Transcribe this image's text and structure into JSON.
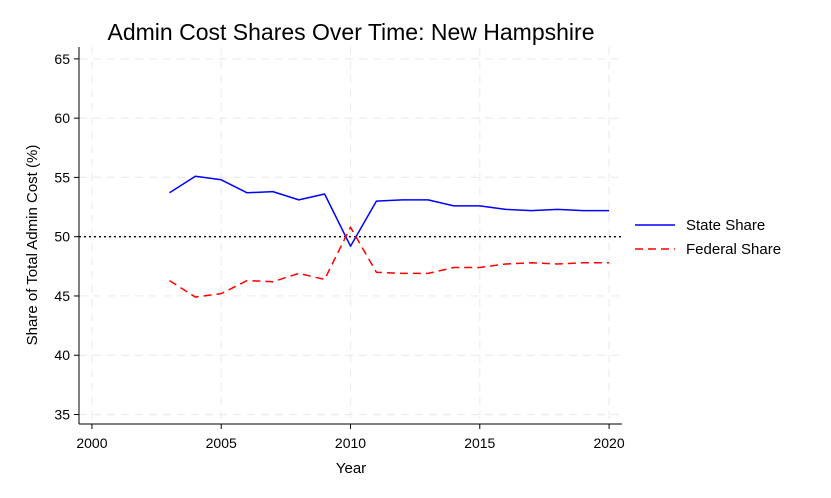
{
  "chart_data": {
    "type": "line",
    "title": "Admin Cost Shares Over Time: New Hampshire",
    "xlabel": "Year",
    "ylabel": "Share of Total Admin Cost (%)",
    "xlim": [
      1999.5,
      2020.5
    ],
    "ylim": [
      34.2,
      66
    ],
    "xticks": [
      2000,
      2005,
      2010,
      2015,
      2020
    ],
    "yticks": [
      35,
      40,
      45,
      50,
      55,
      60,
      65
    ],
    "grid": true,
    "reference_line": {
      "y": 50,
      "style": "dotted",
      "color": "#000000"
    },
    "legend_position": "right",
    "x": [
      2003,
      2004,
      2005,
      2006,
      2007,
      2008,
      2009,
      2010,
      2011,
      2012,
      2013,
      2014,
      2015,
      2016,
      2017,
      2018,
      2019,
      2020
    ],
    "series": [
      {
        "name": "State Share",
        "color": "#0000ff",
        "style": "solid",
        "values": [
          53.7,
          55.1,
          54.8,
          53.7,
          53.8,
          53.1,
          53.6,
          49.2,
          53.0,
          53.1,
          53.1,
          52.6,
          52.6,
          52.3,
          52.2,
          52.3,
          52.2,
          52.2
        ]
      },
      {
        "name": "Federal Share",
        "color": "#ff0000",
        "style": "dashed",
        "values": [
          46.3,
          44.9,
          45.2,
          46.3,
          46.2,
          46.9,
          46.4,
          50.8,
          47.0,
          46.9,
          46.9,
          47.4,
          47.4,
          47.7,
          47.8,
          47.7,
          47.8,
          47.8
        ]
      }
    ]
  }
}
